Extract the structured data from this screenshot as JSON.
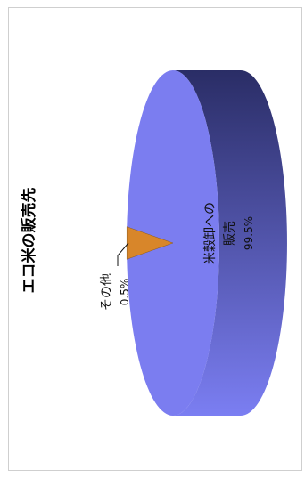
{
  "chart_data": {
    "type": "pie",
    "title": "エコ米の販売先",
    "slices": [
      {
        "label": "米穀卸への販売",
        "label_lines": [
          "米穀卸への",
          "販売"
        ],
        "value": 99.5,
        "value_label": "99.5%",
        "color": "#7b7df0"
      },
      {
        "label": "その他",
        "value": 0.5,
        "value_label": "0.5%",
        "color": "#d8862a"
      }
    ],
    "legend": "none",
    "style": "3d-cylinder"
  },
  "colors": {
    "face": "#7b7df0",
    "side_top": "#2a2d66",
    "side_bottom": "#7b7ef2",
    "minor": "#d8862a"
  }
}
